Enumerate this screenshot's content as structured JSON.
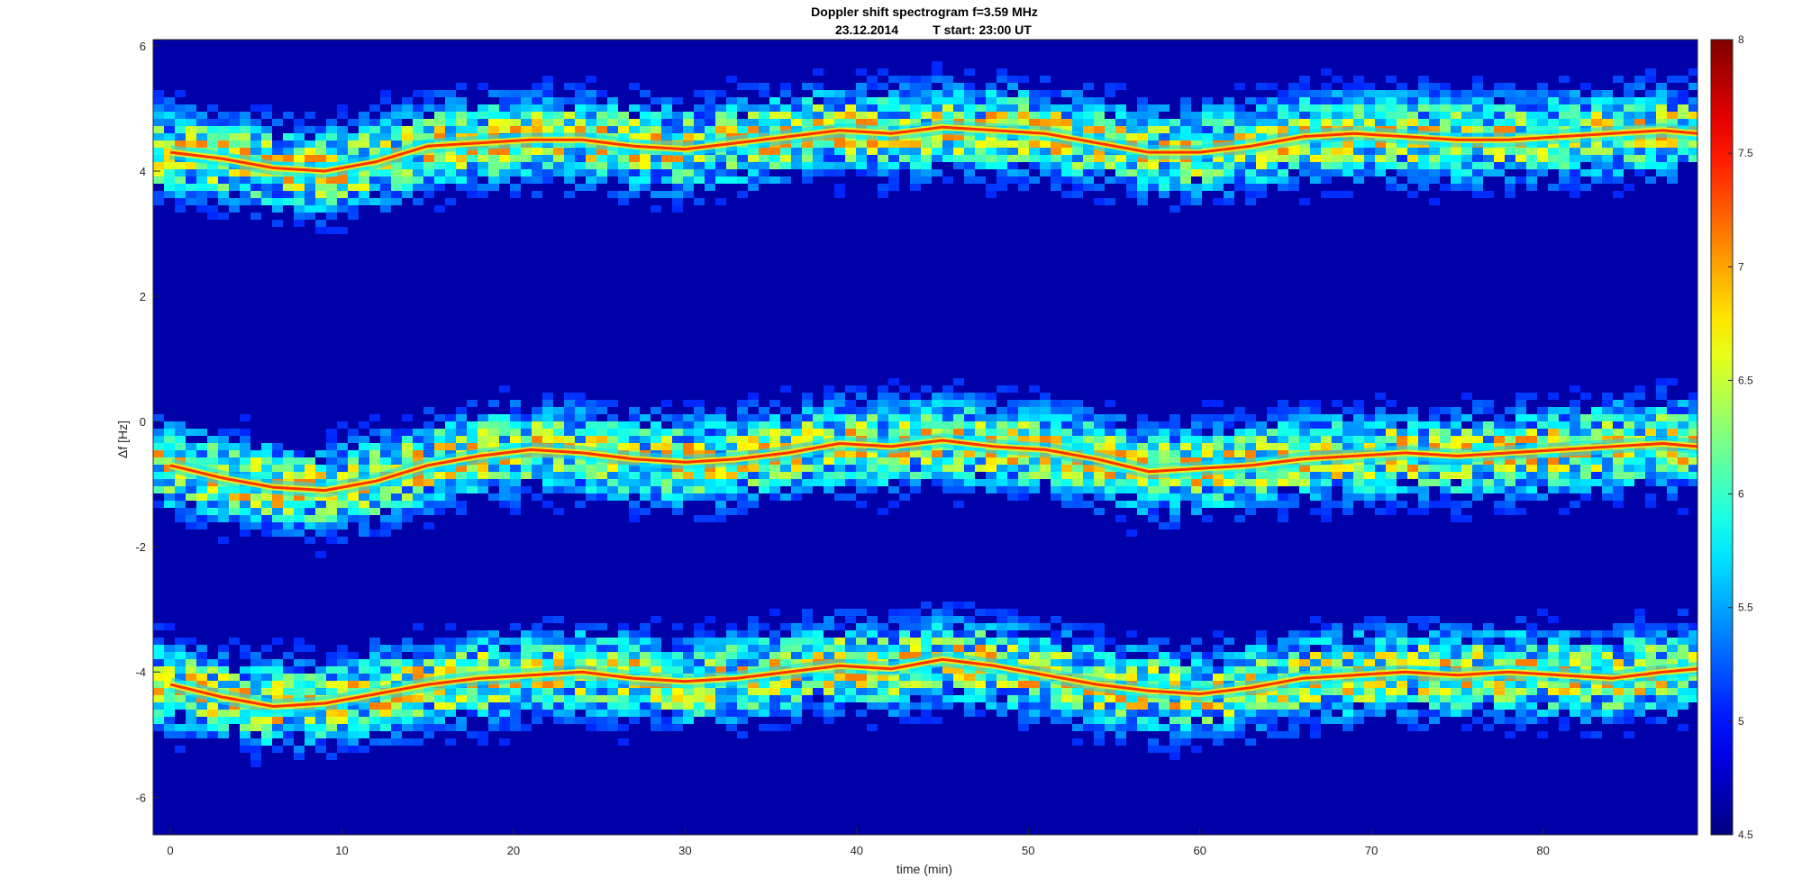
{
  "chart_data": {
    "type": "heatmap",
    "title": "Doppler shift spectrogram f=3.59 MHz",
    "subtitle_date": "23.12.2014",
    "subtitle_start": "T start: 23:00 UT",
    "xlabel": "time (min)",
    "ylabel": "Δf [Hz]",
    "xlim": [
      -1,
      89
    ],
    "ylim": [
      -6.6,
      6.1
    ],
    "x_ticks": [
      0,
      10,
      20,
      30,
      40,
      50,
      60,
      70,
      80
    ],
    "y_ticks": [
      -6,
      -4,
      -2,
      0,
      2,
      4,
      6
    ],
    "colorbar": {
      "range": [
        4.5,
        8
      ],
      "ticks": [
        4.5,
        5,
        5.5,
        6,
        6.5,
        7,
        7.5,
        8
      ],
      "colormap": "jet"
    },
    "traces": [
      {
        "x": [
          0,
          3,
          6,
          9,
          12,
          15,
          18,
          21,
          24,
          27,
          30,
          33,
          36,
          39,
          42,
          45,
          48,
          51,
          54,
          57,
          60,
          63,
          66,
          69,
          72,
          75,
          78,
          81,
          84,
          87,
          89
        ],
        "y": [
          4.3,
          4.2,
          4.05,
          4.0,
          4.15,
          4.4,
          4.45,
          4.5,
          4.5,
          4.4,
          4.35,
          4.45,
          4.55,
          4.65,
          4.6,
          4.7,
          4.65,
          4.6,
          4.45,
          4.3,
          4.3,
          4.4,
          4.55,
          4.6,
          4.55,
          4.5,
          4.5,
          4.55,
          4.6,
          4.65,
          4.6
        ]
      },
      {
        "x": [
          0,
          3,
          6,
          9,
          12,
          15,
          18,
          21,
          24,
          27,
          30,
          33,
          36,
          39,
          42,
          45,
          48,
          51,
          54,
          57,
          60,
          63,
          66,
          69,
          72,
          75,
          78,
          81,
          84,
          87,
          89
        ],
        "y": [
          -0.7,
          -0.9,
          -1.05,
          -1.1,
          -0.95,
          -0.7,
          -0.55,
          -0.45,
          -0.5,
          -0.6,
          -0.65,
          -0.6,
          -0.5,
          -0.35,
          -0.4,
          -0.3,
          -0.4,
          -0.45,
          -0.6,
          -0.8,
          -0.75,
          -0.7,
          -0.6,
          -0.55,
          -0.5,
          -0.55,
          -0.5,
          -0.45,
          -0.4,
          -0.35,
          -0.4
        ]
      },
      {
        "x": [
          0,
          3,
          6,
          9,
          12,
          15,
          18,
          21,
          24,
          27,
          30,
          33,
          36,
          39,
          42,
          45,
          48,
          51,
          54,
          57,
          60,
          63,
          66,
          69,
          72,
          75,
          78,
          81,
          84,
          87,
          89
        ],
        "y": [
          -4.2,
          -4.4,
          -4.55,
          -4.5,
          -4.35,
          -4.2,
          -4.1,
          -4.05,
          -4.0,
          -4.1,
          -4.15,
          -4.1,
          -4.0,
          -3.9,
          -3.95,
          -3.8,
          -3.9,
          -4.05,
          -4.2,
          -4.3,
          -4.35,
          -4.25,
          -4.1,
          -4.05,
          -4.0,
          -4.05,
          -4.0,
          -4.05,
          -4.1,
          -4.0,
          -3.95
        ]
      }
    ]
  }
}
